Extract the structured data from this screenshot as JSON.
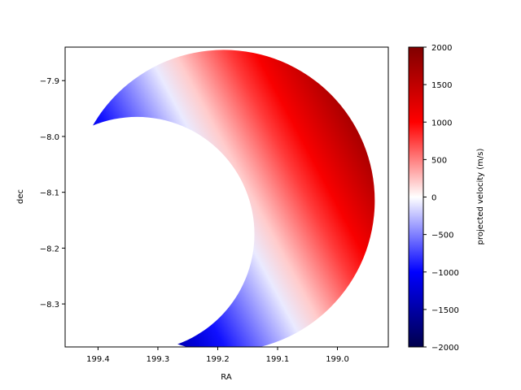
{
  "chart_data": {
    "type": "heatmap",
    "title": "",
    "xlabel": "RA",
    "ylabel": "dec",
    "x_inverted": true,
    "xlim": [
      199.455,
      198.915
    ],
    "ylim": [
      -8.377,
      -7.84
    ],
    "x_ticks": [
      199.4,
      199.3,
      199.2,
      199.1,
      199.0
    ],
    "x_tick_labels": [
      "199.4",
      "199.3",
      "199.2",
      "199.1",
      "199.0"
    ],
    "y_ticks": [
      -7.9,
      -8.0,
      -8.1,
      -8.2,
      -8.3
    ],
    "y_tick_labels": [
      "−7.9",
      "−8.0",
      "−8.1",
      "−8.2",
      "−8.3"
    ],
    "grid": false,
    "shape": "crescent",
    "outer_disk": {
      "center_ra": 199.19,
      "center_dec": -8.115,
      "radius_deg": 0.27
    },
    "inner_disk": {
      "center_ra": 199.335,
      "center_dec": -8.175,
      "radius_deg": 0.21
    },
    "velocity_field": {
      "zero_line": [
        [
          199.29,
          -7.86
        ],
        [
          199.04,
          -8.36
        ]
      ],
      "gradient_direction": "toward lower RA and higher dec",
      "min_value_in_plot": -1500,
      "max_value_in_plot": 1900
    },
    "colorbar": {
      "label": "projected velocity (m/s)",
      "colormap": "seismic",
      "vmin": -2000,
      "vmax": 2000,
      "ticks": [
        2000,
        1500,
        1000,
        500,
        0,
        -500,
        -1000,
        -1500,
        -2000
      ],
      "tick_labels": [
        "2000",
        "1500",
        "1000",
        "500",
        "0",
        "−500",
        "−1000",
        "−1500",
        "−2000"
      ]
    }
  }
}
